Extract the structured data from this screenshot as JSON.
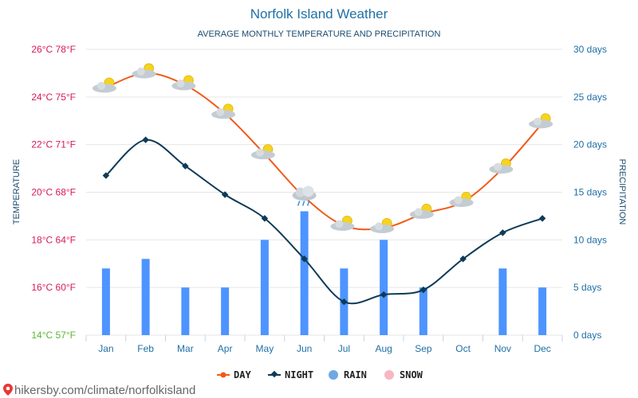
{
  "header": {
    "title": "Norfolk Island Weather",
    "subtitle": "AVERAGE MONTHLY TEMPERATURE AND PRECIPITATION"
  },
  "axes": {
    "left_title": "TEMPERATURE",
    "right_title": "PRECIPITATION",
    "left_ticks": [
      "14°C 57°F",
      "16°C 60°F",
      "18°C 64°F",
      "20°C 68°F",
      "22°C 71°F",
      "24°C 75°F",
      "26°C 78°F"
    ],
    "right_ticks": [
      "0 days",
      "5 days",
      "10 days",
      "15 days",
      "20 days",
      "25 days",
      "30 days"
    ]
  },
  "legend": {
    "day": "DAY",
    "night": "NIGHT",
    "rain": "RAIN",
    "snow": "SNOW"
  },
  "footer": {
    "link": "hikersby.com/climate/norfolkisland"
  },
  "colors": {
    "day": "#f05a1a",
    "night": "#0d3b57",
    "rain": "#4d94ff",
    "rain_legend": "#6fa8e6",
    "snow": "#f7b6c2"
  },
  "chart_data": {
    "type": "line",
    "categories": [
      "Jan",
      "Feb",
      "Mar",
      "Apr",
      "May",
      "Jun",
      "Jul",
      "Aug",
      "Sep",
      "Oct",
      "Nov",
      "Dec"
    ],
    "temperature_range_c": [
      14,
      26
    ],
    "precipitation_range_days": [
      0,
      30
    ],
    "series": [
      {
        "name": "DAY",
        "axis": "temperature",
        "unit": "°C",
        "values": [
          24.4,
          25.0,
          24.5,
          23.3,
          21.6,
          19.8,
          18.6,
          18.5,
          19.1,
          19.6,
          21.0,
          22.9
        ],
        "icons": [
          "sun-cloud",
          "sun-cloud",
          "sun-cloud",
          "sun-cloud",
          "sun-cloud",
          "rain-cloud",
          "sun-cloud",
          "sun-cloud",
          "sun-cloud",
          "sun-cloud",
          "sun-cloud",
          "sun-cloud"
        ]
      },
      {
        "name": "NIGHT",
        "axis": "temperature",
        "unit": "°C",
        "values": [
          20.7,
          22.2,
          21.1,
          19.9,
          18.9,
          17.2,
          15.4,
          15.7,
          15.9,
          17.2,
          18.3,
          18.9
        ]
      },
      {
        "name": "RAIN",
        "axis": "precipitation",
        "unit": "days",
        "values": [
          7,
          8,
          5,
          5,
          10,
          13,
          7,
          10,
          5,
          0,
          7,
          5
        ]
      }
    ]
  }
}
